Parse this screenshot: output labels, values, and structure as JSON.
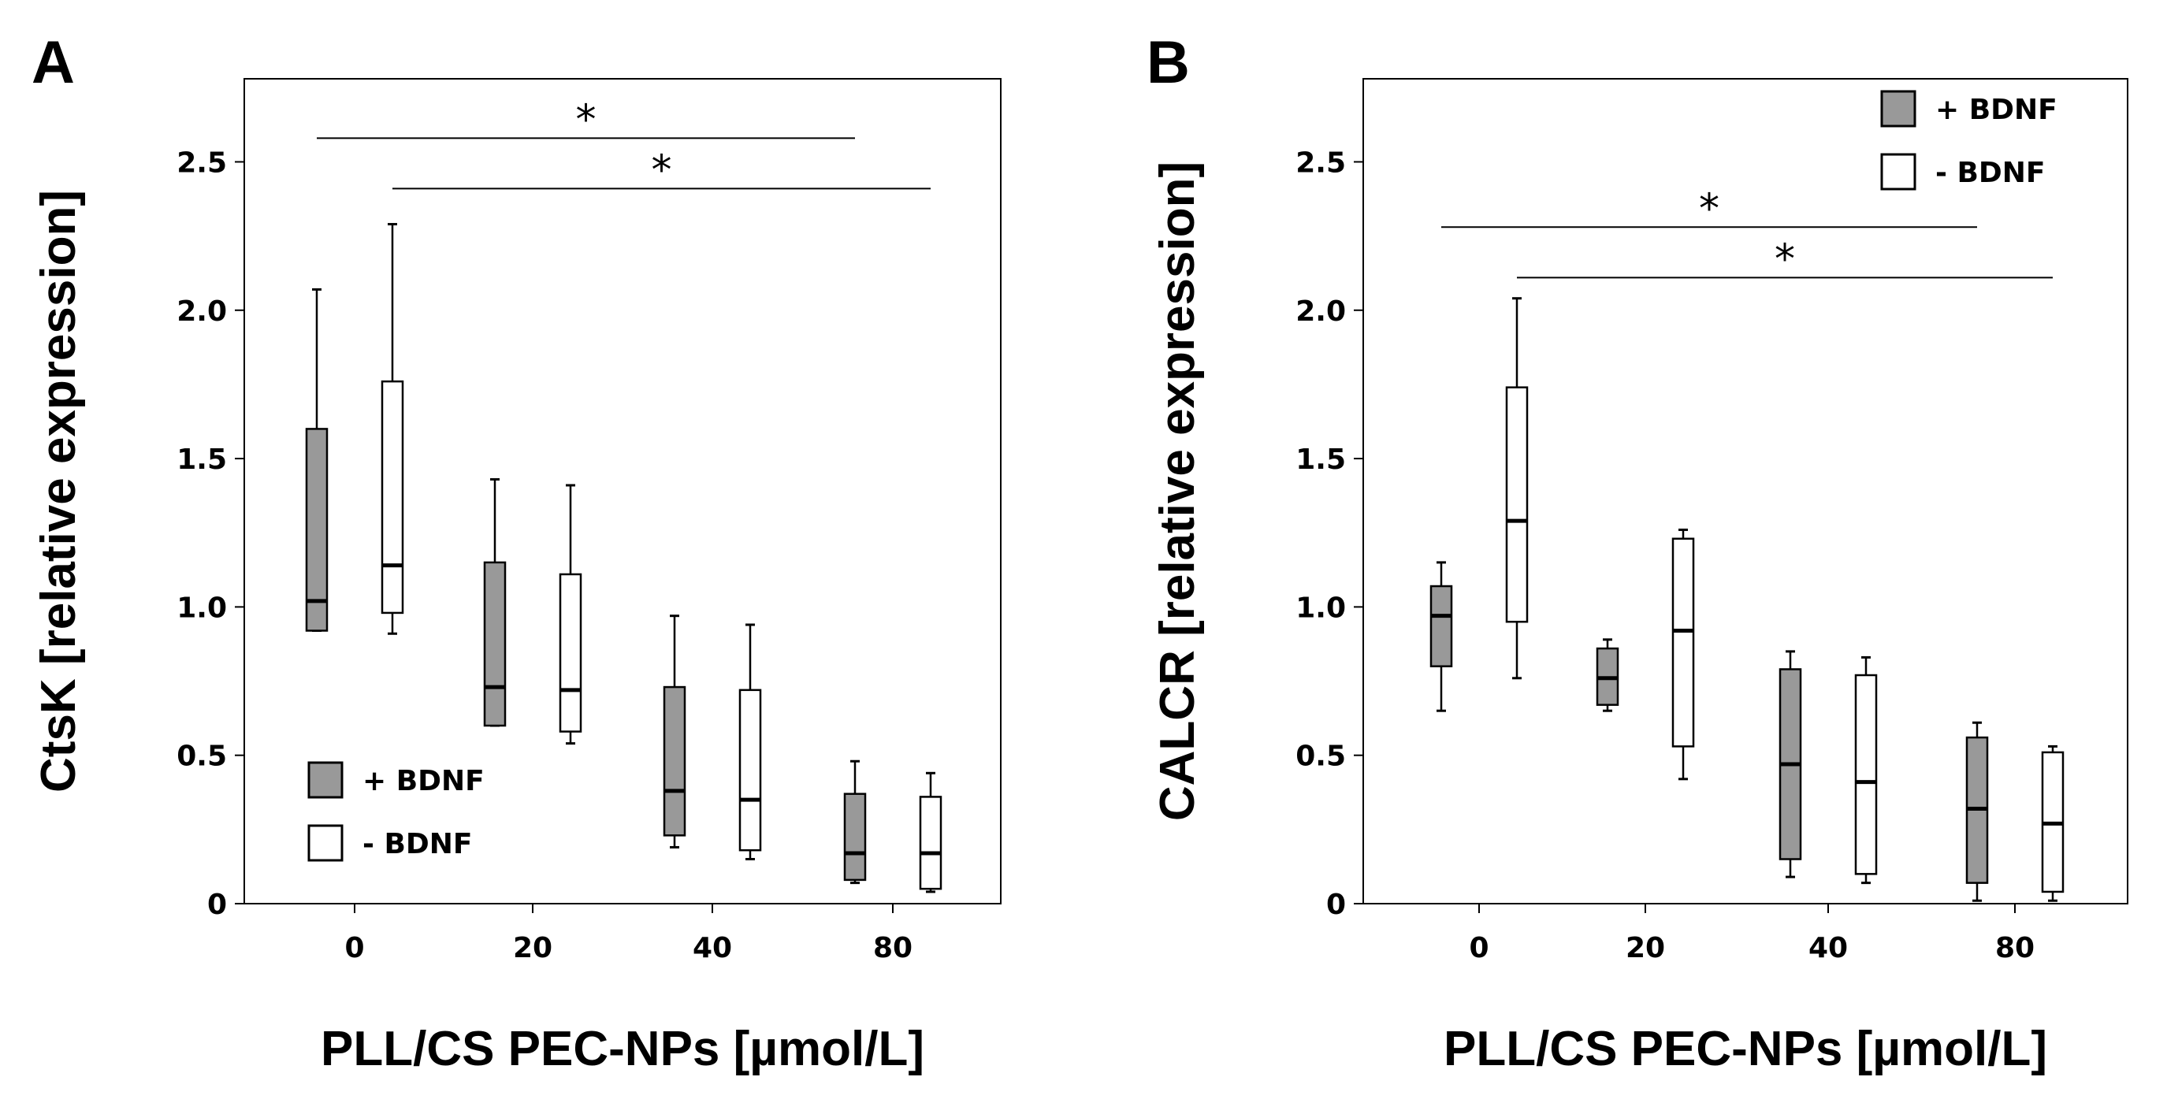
{
  "figure": {
    "panels": [
      "A",
      "B"
    ]
  },
  "colors": {
    "with_bdnf": "#999999",
    "without_bdnf": "#ffffff",
    "stroke": "#000000"
  },
  "chart_data": [
    {
      "type": "box",
      "panel": "A",
      "ylabel": "CtsK [relative expression]",
      "xlabel": "PLL/CS PEC-NPs [µmol/L]",
      "categories": [
        "0",
        "20",
        "40",
        "80"
      ],
      "yticks": [
        "0",
        "0.5",
        "1.0",
        "1.5",
        "2.0",
        "2.5"
      ],
      "ylim": [
        0,
        2.78
      ],
      "legend": {
        "position": "bottom-left",
        "entries": [
          "+ BDNF",
          "- BDNF"
        ]
      },
      "series": [
        {
          "name": "+ BDNF",
          "boxes": [
            {
              "category": "0",
              "min": 0.92,
              "q1": 0.92,
              "median": 1.02,
              "q3": 1.6,
              "max": 2.07
            },
            {
              "category": "20",
              "min": 0.6,
              "q1": 0.6,
              "median": 0.73,
              "q3": 1.15,
              "max": 1.43
            },
            {
              "category": "40",
              "min": 0.19,
              "q1": 0.23,
              "median": 0.38,
              "q3": 0.73,
              "max": 0.97
            },
            {
              "category": "80",
              "min": 0.07,
              "q1": 0.08,
              "median": 0.17,
              "q3": 0.37,
              "max": 0.48
            }
          ]
        },
        {
          "name": "- BDNF",
          "boxes": [
            {
              "category": "0",
              "min": 0.91,
              "q1": 0.98,
              "median": 1.14,
              "q3": 1.76,
              "max": 2.29
            },
            {
              "category": "20",
              "min": 0.54,
              "q1": 0.58,
              "median": 0.72,
              "q3": 1.11,
              "max": 1.41
            },
            {
              "category": "40",
              "min": 0.15,
              "q1": 0.18,
              "median": 0.35,
              "q3": 0.72,
              "max": 0.94
            },
            {
              "category": "80",
              "min": 0.04,
              "q1": 0.05,
              "median": 0.17,
              "q3": 0.36,
              "max": 0.44
            }
          ]
        }
      ],
      "significance": [
        {
          "from": {
            "series": "+ BDNF",
            "category": "0"
          },
          "to": {
            "series": "+ BDNF",
            "category": "80"
          },
          "y": 2.58,
          "label": "*"
        },
        {
          "from": {
            "series": "- BDNF",
            "category": "0"
          },
          "to": {
            "series": "- BDNF",
            "category": "80"
          },
          "y": 2.41,
          "label": "*"
        }
      ]
    },
    {
      "type": "box",
      "panel": "B",
      "ylabel": "CALCR [relative expression]",
      "xlabel": "PLL/CS PEC-NPs [µmol/L]",
      "categories": [
        "0",
        "20",
        "40",
        "80"
      ],
      "yticks": [
        "0",
        "0.5",
        "1.0",
        "1.5",
        "2.0",
        "2.5"
      ],
      "ylim": [
        0,
        2.78
      ],
      "legend": {
        "position": "top-right",
        "entries": [
          "+ BDNF",
          "- BDNF"
        ]
      },
      "series": [
        {
          "name": "+ BDNF",
          "boxes": [
            {
              "category": "0",
              "min": 0.65,
              "q1": 0.8,
              "median": 0.97,
              "q3": 1.07,
              "max": 1.15
            },
            {
              "category": "20",
              "min": 0.65,
              "q1": 0.67,
              "median": 0.76,
              "q3": 0.86,
              "max": 0.89
            },
            {
              "category": "40",
              "min": 0.09,
              "q1": 0.15,
              "median": 0.47,
              "q3": 0.79,
              "max": 0.85
            },
            {
              "category": "80",
              "min": 0.01,
              "q1": 0.07,
              "median": 0.32,
              "q3": 0.56,
              "max": 0.61
            }
          ]
        },
        {
          "name": "- BDNF",
          "boxes": [
            {
              "category": "0",
              "min": 0.76,
              "q1": 0.95,
              "median": 1.29,
              "q3": 1.74,
              "max": 2.04
            },
            {
              "category": "20",
              "min": 0.42,
              "q1": 0.53,
              "median": 0.92,
              "q3": 1.23,
              "max": 1.26
            },
            {
              "category": "40",
              "min": 0.07,
              "q1": 0.1,
              "median": 0.41,
              "q3": 0.77,
              "max": 0.83
            },
            {
              "category": "80",
              "min": 0.01,
              "q1": 0.04,
              "median": 0.27,
              "q3": 0.51,
              "max": 0.53
            }
          ]
        }
      ],
      "significance": [
        {
          "from": {
            "series": "+ BDNF",
            "category": "0"
          },
          "to": {
            "series": "+ BDNF",
            "category": "80"
          },
          "y": 2.28,
          "label": "*"
        },
        {
          "from": {
            "series": "- BDNF",
            "category": "0"
          },
          "to": {
            "series": "- BDNF",
            "category": "80"
          },
          "y": 2.11,
          "label": "*"
        }
      ]
    }
  ]
}
